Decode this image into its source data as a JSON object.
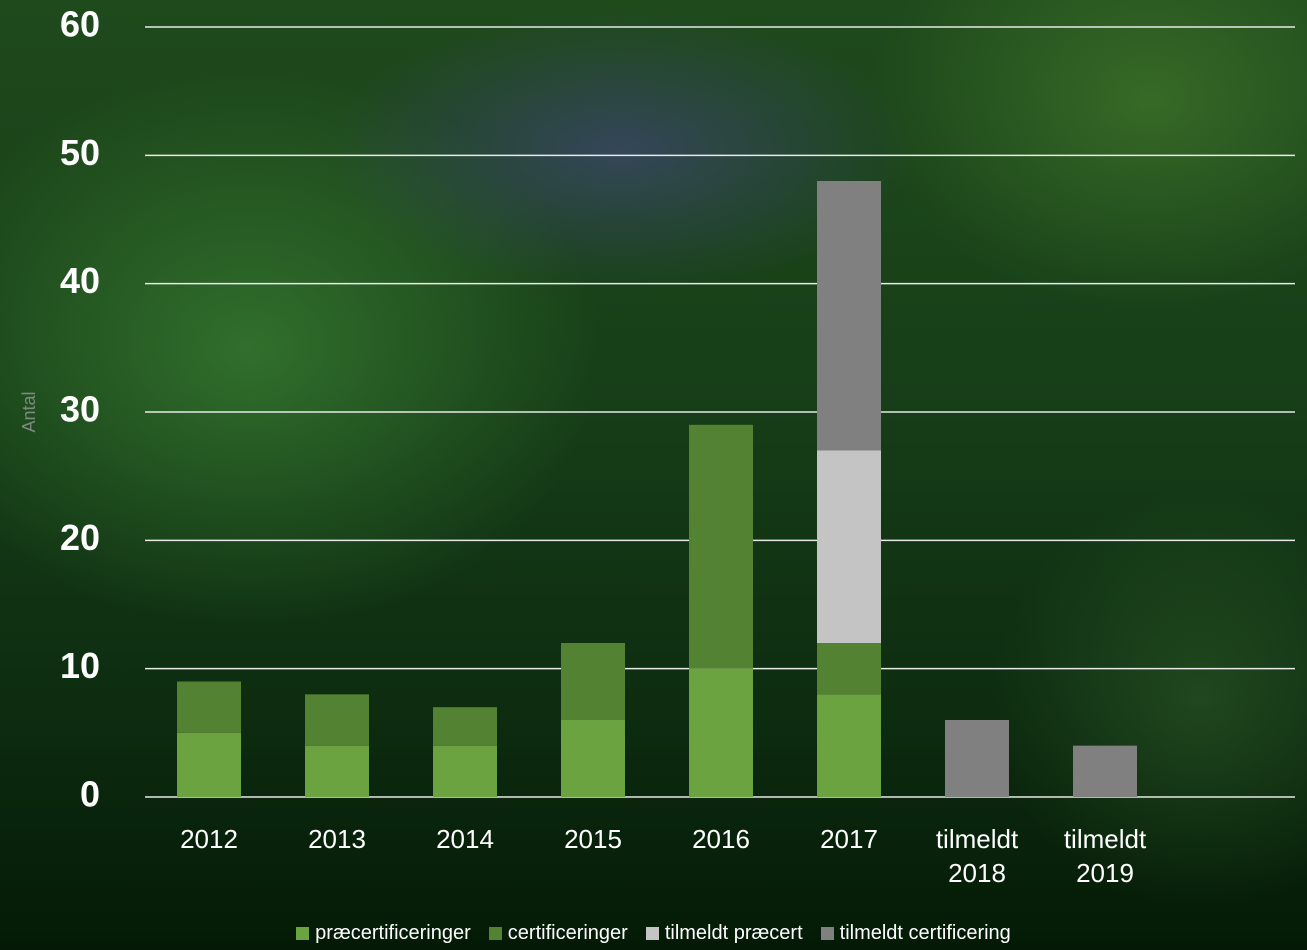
{
  "chart_data": {
    "type": "bar",
    "stacked": true,
    "y_label": "Antal",
    "categories": [
      "2012",
      "2013",
      "2014",
      "2015",
      "2016",
      "2017",
      "tilmeldt 2018",
      "tilmeldt 2019"
    ],
    "series": [
      {
        "name": "præcertificeringer",
        "color": "#6aa33f",
        "values": [
          5,
          4,
          4,
          6,
          10,
          8,
          null,
          null
        ]
      },
      {
        "name": "certificeringer",
        "color": "#538232",
        "values": [
          4,
          4,
          3,
          6,
          19,
          4,
          null,
          null
        ]
      },
      {
        "name": "tilmeldt præcert",
        "color": "#c4c4c4",
        "values": [
          null,
          null,
          null,
          null,
          null,
          15,
          null,
          null
        ]
      },
      {
        "name": "tilmeldt certificering",
        "color": "#808080",
        "values": [
          null,
          null,
          null,
          null,
          null,
          21,
          6,
          4
        ]
      }
    ],
    "ylim": [
      0,
      60
    ],
    "yticks": [
      0,
      10,
      20,
      30,
      40,
      50,
      60
    ],
    "grid": true,
    "legend": "bottom"
  }
}
